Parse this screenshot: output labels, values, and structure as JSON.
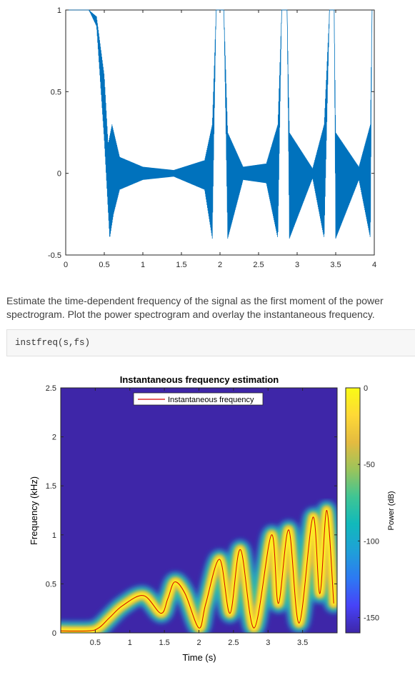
{
  "description": {
    "line1": "Estimate the time-dependent frequency of the signal as the first moment of the power",
    "line2": "spectrogram. Plot the power spectrogram and overlay the instantaneous frequency."
  },
  "code": "instfreq(s,fs)",
  "chart_data": [
    {
      "type": "line",
      "title": "",
      "xlabel": "",
      "ylabel": "",
      "xlim": [
        0,
        4
      ],
      "ylim": [
        -0.5,
        1
      ],
      "x_ticks": [
        "0",
        "0.5",
        "1",
        "1.5",
        "2",
        "2.5",
        "3",
        "3.5",
        "4"
      ],
      "y_ticks": [
        "-0.5",
        "0",
        "0.5",
        "1"
      ],
      "color": "#0072bd",
      "series": [
        {
          "envelope_upper": [
            [
              0,
              1
            ],
            [
              0.3,
              1
            ],
            [
              0.4,
              0.96
            ],
            [
              0.5,
              0.6
            ],
            [
              0.55,
              0.18
            ],
            [
              0.6,
              0.3
            ],
            [
              0.7,
              0.1
            ],
            [
              1.0,
              0.04
            ],
            [
              1.4,
              0.02
            ],
            [
              1.8,
              0.08
            ],
            [
              1.9,
              0.3
            ],
            [
              1.95,
              1
            ],
            [
              2.05,
              1
            ],
            [
              2.1,
              0.25
            ],
            [
              2.3,
              0.04
            ],
            [
              2.6,
              0.06
            ],
            [
              2.75,
              0.3
            ],
            [
              2.8,
              1
            ],
            [
              2.87,
              1
            ],
            [
              2.9,
              0.25
            ],
            [
              3.2,
              0.03
            ],
            [
              3.35,
              0.3
            ],
            [
              3.42,
              1
            ],
            [
              3.48,
              1
            ],
            [
              3.5,
              0.25
            ],
            [
              3.8,
              0.04
            ],
            [
              3.95,
              0.3
            ],
            [
              3.97,
              1
            ],
            [
              4,
              1
            ]
          ],
          "envelope_lower": [
            [
              0,
              1
            ],
            [
              0.3,
              1
            ],
            [
              0.4,
              0.9
            ],
            [
              0.5,
              0.2
            ],
            [
              0.57,
              -0.4
            ],
            [
              0.62,
              -0.25
            ],
            [
              0.7,
              -0.1
            ],
            [
              1.0,
              -0.04
            ],
            [
              1.4,
              -0.02
            ],
            [
              1.8,
              -0.1
            ],
            [
              1.9,
              -0.4
            ],
            [
              1.95,
              1
            ],
            [
              2.05,
              1
            ],
            [
              2.1,
              -0.4
            ],
            [
              2.3,
              -0.04
            ],
            [
              2.6,
              -0.06
            ],
            [
              2.75,
              -0.4
            ],
            [
              2.8,
              1
            ],
            [
              2.87,
              1
            ],
            [
              2.9,
              -0.4
            ],
            [
              3.2,
              -0.03
            ],
            [
              3.35,
              -0.4
            ],
            [
              3.42,
              1
            ],
            [
              3.48,
              1
            ],
            [
              3.5,
              -0.4
            ],
            [
              3.8,
              -0.04
            ],
            [
              3.95,
              -0.4
            ],
            [
              3.97,
              1
            ],
            [
              4,
              1
            ]
          ]
        }
      ]
    },
    {
      "type": "heatmap",
      "title": "Instantaneous frequency estimation",
      "xlabel": "Time (s)",
      "ylabel": "Frequency (kHz)",
      "xlim": [
        0,
        4
      ],
      "ylim": [
        0,
        2.5
      ],
      "x_ticks": [
        "0.5",
        "1",
        "1.5",
        "2",
        "2.5",
        "3",
        "3.5"
      ],
      "y_ticks": [
        "0",
        "0.5",
        "1",
        "1.5",
        "2",
        "2.5"
      ],
      "legend": "top-center",
      "series": [
        {
          "name": "Instantaneous frequency",
          "color": "#d40000",
          "points": [
            [
              0,
              0.02
            ],
            [
              0.4,
              0.02
            ],
            [
              0.55,
              0.05
            ],
            [
              0.7,
              0.15
            ],
            [
              0.9,
              0.28
            ],
            [
              1.2,
              0.38
            ],
            [
              1.45,
              0.2
            ],
            [
              1.55,
              0.35
            ],
            [
              1.65,
              0.52
            ],
            [
              1.8,
              0.4
            ],
            [
              2.0,
              0.05
            ],
            [
              2.1,
              0.3
            ],
            [
              2.3,
              0.75
            ],
            [
              2.45,
              0.2
            ],
            [
              2.6,
              0.85
            ],
            [
              2.8,
              0.05
            ],
            [
              3.05,
              1.0
            ],
            [
              3.15,
              0.3
            ],
            [
              3.3,
              1.05
            ],
            [
              3.45,
              0.1
            ],
            [
              3.65,
              1.18
            ],
            [
              3.75,
              0.4
            ],
            [
              3.85,
              1.25
            ],
            [
              3.95,
              0.3
            ]
          ]
        }
      ],
      "colorbar": {
        "label": "Power (dB)",
        "ticks": [
          "0",
          "-50",
          "-100",
          "-150"
        ],
        "range": [
          -160,
          0
        ],
        "colors": [
          "#3e26a8",
          "#4743f8",
          "#2d79f3",
          "#1fa0d8",
          "#11b9bb",
          "#3fc594",
          "#9bc45b",
          "#e4bb40",
          "#fed936",
          "#f9fb15"
        ]
      }
    }
  ]
}
